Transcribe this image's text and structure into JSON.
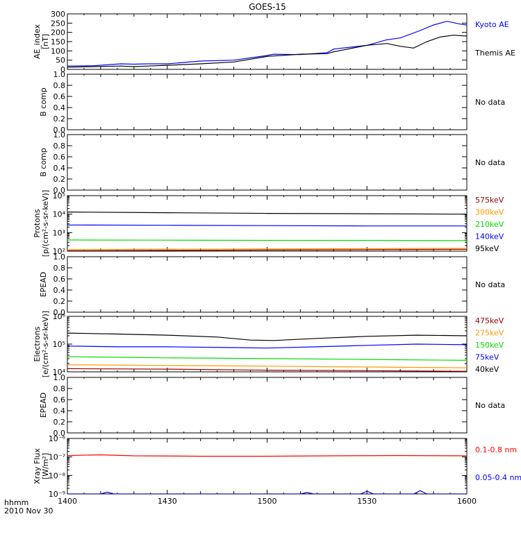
{
  "title": "GOES-15",
  "footer": {
    "time_unit": "hhmm",
    "date": "2010 Nov 30"
  },
  "x_ticks": [
    "1400",
    "1430",
    "1500",
    "1530",
    "1600"
  ],
  "chart_data": [
    {
      "type": "line",
      "panel": "ae-index",
      "ylabel": [
        "AE_index",
        "[nT]"
      ],
      "x_range": [
        0,
        120
      ],
      "ylim": [
        0,
        300
      ],
      "yticks": [
        0,
        50,
        100,
        150,
        200,
        250,
        300
      ],
      "series": [
        {
          "name": "Kyoto AE",
          "color": "#0000ff",
          "x": [
            0,
            8,
            16,
            20,
            24,
            30,
            40,
            50,
            60,
            62,
            70,
            78,
            80,
            90,
            96,
            100,
            106,
            110,
            114,
            118,
            120
          ],
          "y": [
            18,
            20,
            30,
            28,
            30,
            30,
            45,
            50,
            75,
            82,
            80,
            90,
            110,
            130,
            160,
            170,
            210,
            240,
            260,
            245,
            240
          ]
        },
        {
          "name": "Themis AE",
          "color": "#000000",
          "x": [
            0,
            8,
            16,
            20,
            24,
            30,
            40,
            50,
            60,
            70,
            78,
            80,
            90,
            96,
            100,
            104,
            108,
            112,
            116,
            120
          ],
          "y": [
            12,
            15,
            18,
            15,
            18,
            22,
            30,
            40,
            70,
            82,
            85,
            95,
            130,
            140,
            125,
            115,
            150,
            175,
            185,
            180
          ]
        }
      ]
    },
    {
      "type": "line",
      "panel": "b-comp-1",
      "ylabel": [
        "B comp"
      ],
      "ylim": [
        0,
        1
      ],
      "yticks": [
        "0.0",
        "0.2",
        "0.4",
        "0.6",
        "0.8",
        "1.0"
      ],
      "note": "No data"
    },
    {
      "type": "line",
      "panel": "b-comp-2",
      "ylabel": [
        "B comp"
      ],
      "ylim": [
        0,
        1
      ],
      "yticks": [
        "0.0",
        "0.2",
        "0.4",
        "0.6",
        "0.8",
        "1.0"
      ],
      "note": "No data"
    },
    {
      "type": "line",
      "panel": "protons",
      "ylabel": [
        "Protons",
        "[p/(cm²-s-sr-keV)]"
      ],
      "yscale": "log",
      "ylim": [
        100,
        100000
      ],
      "yticks": [
        "10²",
        "10³",
        "10⁴",
        "10⁵"
      ],
      "series": [
        {
          "name": "575keV",
          "color": "#990000",
          "x": [
            0,
            30,
            60,
            90,
            120
          ],
          "y": [
            105,
            110,
            115,
            120,
            125
          ]
        },
        {
          "name": "300keV",
          "color": "#ff9900",
          "x": [
            0,
            30,
            60,
            90,
            120
          ],
          "y": [
            120,
            128,
            132,
            138,
            140
          ]
        },
        {
          "name": "210keV",
          "color": "#00dd00",
          "x": [
            0,
            30,
            60,
            90,
            120
          ],
          "y": [
            400,
            390,
            380,
            380,
            370
          ]
        },
        {
          "name": "140keV",
          "color": "#0000ff",
          "x": [
            0,
            30,
            60,
            90,
            120
          ],
          "y": [
            2600,
            2500,
            2400,
            2300,
            2300
          ]
        },
        {
          "name": "95keV",
          "color": "#000000",
          "x": [
            0,
            30,
            60,
            90,
            120
          ],
          "y": [
            13000,
            12000,
            11000,
            10500,
            10000
          ]
        }
      ]
    },
    {
      "type": "line",
      "panel": "epead-1",
      "ylabel": [
        "EPEAD"
      ],
      "ylim": [
        0,
        1
      ],
      "yticks": [
        "0.0",
        "0.2",
        "0.4",
        "0.6",
        "0.8",
        "1.0"
      ],
      "note": "No data"
    },
    {
      "type": "line",
      "panel": "electrons",
      "ylabel": [
        "Electrons",
        "[e/(cm²-s-sr-keV)]"
      ],
      "yscale": "log",
      "ylim": [
        10000,
        1000000
      ],
      "yticks": [
        "10⁴",
        "10⁵",
        "10⁶"
      ],
      "series": [
        {
          "name": "475keV",
          "color": "#990000",
          "x": [
            0,
            30,
            60,
            90,
            120
          ],
          "y": [
            13000,
            12500,
            11500,
            11000,
            10500
          ]
        },
        {
          "name": "275keV",
          "color": "#ff9900",
          "x": [
            0,
            30,
            60,
            90,
            120
          ],
          "y": [
            18000,
            17000,
            16000,
            15000,
            14000
          ]
        },
        {
          "name": "150keV",
          "color": "#00dd00",
          "x": [
            0,
            30,
            60,
            90,
            120
          ],
          "y": [
            35000,
            32000,
            30000,
            28000,
            26000
          ]
        },
        {
          "name": "75keV",
          "color": "#0000ff",
          "x": [
            0,
            15,
            30,
            50,
            60,
            75,
            90,
            105,
            120
          ],
          "y": [
            85000,
            80000,
            80000,
            75000,
            72000,
            80000,
            90000,
            100000,
            95000
          ]
        },
        {
          "name": "40keV",
          "color": "#000000",
          "x": [
            0,
            15,
            30,
            45,
            55,
            62,
            75,
            90,
            105,
            120
          ],
          "y": [
            250000,
            230000,
            210000,
            180000,
            140000,
            135000,
            160000,
            190000,
            210000,
            200000
          ]
        }
      ]
    },
    {
      "type": "line",
      "panel": "epead-2",
      "ylabel": [
        "EPEAD"
      ],
      "ylim": [
        0,
        1
      ],
      "yticks": [
        "0.0",
        "0.2",
        "0.4",
        "0.6",
        "0.8",
        "1.0"
      ],
      "note": "No data"
    },
    {
      "type": "line",
      "panel": "xray",
      "ylabel": [
        "Xray Flux",
        "[W/m²]"
      ],
      "yscale": "log",
      "ylim": [
        1e-09,
        1e-06
      ],
      "yticks": [
        "10⁻⁹",
        "10⁻⁸",
        "10⁻⁷",
        "10⁻⁶"
      ],
      "series": [
        {
          "name": "0.1-0.8 nm",
          "color": "#ff0000",
          "x": [
            0,
            10,
            20,
            40,
            60,
            80,
            100,
            120
          ],
          "y": [
            1.2e-07,
            1.3e-07,
            1.15e-07,
            1.1e-07,
            1.1e-07,
            1.15e-07,
            1.2e-07,
            1.15e-07
          ]
        },
        {
          "name": "0.05-0.4 nm",
          "color": "#0000ff",
          "x": [
            0,
            10,
            12,
            14,
            30,
            70,
            72,
            74,
            88,
            90,
            92,
            100,
            104,
            106,
            108,
            120
          ],
          "y": [
            1e-09,
            1e-09,
            1.25e-09,
            1e-09,
            1e-09,
            1e-09,
            1.2e-09,
            1e-09,
            1e-09,
            1.4e-09,
            1e-09,
            1e-09,
            1e-09,
            1.5e-09,
            1e-09,
            1e-09
          ]
        }
      ]
    }
  ]
}
